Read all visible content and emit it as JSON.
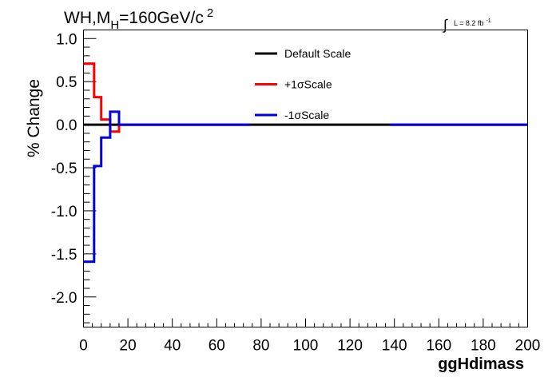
{
  "chart_data": {
    "type": "line",
    "title": "WH,M",
    "title_sub": "H",
    "title_rest": "=160GeV/c",
    "title_sup": "2",
    "lumi_integral": "∫",
    "lumi_text": "L = 8.2 fb",
    "lumi_sup": "-1",
    "xlabel": "ggHdimass",
    "ylabel": "% Change",
    "xlim": [
      0,
      200
    ],
    "ylim": [
      -2.35,
      1.1
    ],
    "x_ticks": [
      "0",
      "20",
      "40",
      "60",
      "80",
      "100",
      "120",
      "140",
      "160",
      "180",
      "200"
    ],
    "y_ticks": [
      "1.0",
      "0.5",
      "0.0",
      "-0.5",
      "-1.0",
      "-1.5",
      "-2.0"
    ],
    "legend_position": "top-center",
    "series": [
      {
        "name": "Default Scale",
        "color": "#000000",
        "bin_edges": [
          0,
          200
        ],
        "values": [
          0.0
        ]
      },
      {
        "name": "+1σScale",
        "color": "#ff0000",
        "bin_edges": [
          0,
          4.8,
          8,
          12,
          16,
          75,
          138,
          200
        ],
        "values": [
          0.71,
          0.32,
          0.06,
          -0.08,
          0.0,
          null,
          0.0
        ]
      },
      {
        "name": "-1σScale",
        "color": "#0000dd",
        "bin_edges": [
          0,
          4.8,
          8,
          12,
          16,
          75,
          138,
          200
        ],
        "values": [
          -1.59,
          -0.48,
          -0.15,
          0.15,
          0.0,
          null,
          0.0
        ]
      }
    ]
  }
}
